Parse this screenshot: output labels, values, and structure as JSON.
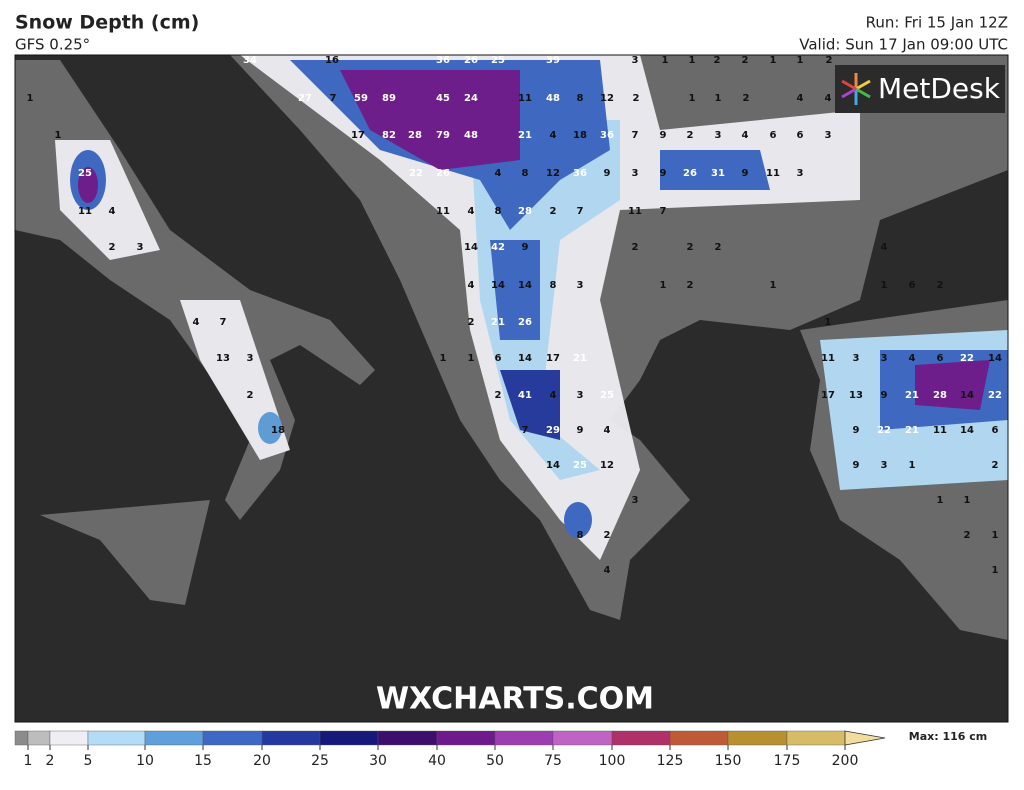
{
  "header": {
    "title": "Snow Depth (cm)",
    "model": "GFS 0.25°",
    "run": "Run: Fri 15 Jan 12Z",
    "valid": "Valid: Sun 17 Jan 09:00 UTC"
  },
  "brand": "MetDesk",
  "watermark": "WXCHARTS.COM",
  "legend": {
    "ticks": [
      1,
      2,
      5,
      10,
      15,
      20,
      25,
      30,
      40,
      50,
      75,
      100,
      125,
      150,
      175,
      200
    ],
    "colors": [
      "#8c8c8c",
      "#bdbdbd",
      "#eeeef4",
      "#b5dcf7",
      "#5f9fdc",
      "#3d68c6",
      "#2439a0",
      "#16197a",
      "#3d0e6e",
      "#6e1a8c",
      "#9c3db0",
      "#c064c4",
      "#b0306a",
      "#c05a36",
      "#b89030",
      "#d6bc66",
      "#f2dc9e"
    ],
    "max_label": "Max: 116 cm"
  },
  "map_labels": [
    [
      34,
      16,
      36,
      26,
      25,
      39,
      3,
      1,
      1,
      2,
      2,
      1,
      1,
      2
    ],
    [
      1,
      27,
      7,
      59,
      89,
      45,
      24,
      11,
      48,
      8,
      12,
      2,
      1,
      1,
      2,
      4,
      4
    ],
    [
      1,
      17,
      82,
      28,
      79,
      48,
      21,
      4,
      18,
      36,
      7,
      9,
      2,
      3,
      4,
      6,
      6,
      3
    ],
    [
      25,
      22,
      26,
      4,
      8,
      12,
      36,
      9,
      3,
      9,
      26,
      31,
      9,
      11,
      3
    ],
    [
      11,
      4,
      11,
      4,
      8,
      28,
      2,
      7,
      11,
      7
    ],
    [
      2,
      3,
      14,
      42,
      9,
      2,
      2,
      2,
      4
    ],
    [
      4,
      14,
      14,
      8,
      3,
      1,
      2,
      1,
      1,
      6,
      2
    ],
    [
      4,
      7,
      2,
      21,
      26,
      1
    ],
    [
      13,
      3,
      1,
      1,
      6,
      14,
      17,
      21,
      11,
      3,
      3,
      4,
      6,
      22,
      14
    ],
    [
      2,
      2,
      41,
      4,
      3,
      25,
      17,
      13,
      9,
      21,
      28,
      14,
      22
    ],
    [
      18,
      7,
      29,
      9,
      4,
      9,
      22,
      21,
      11,
      14,
      6
    ],
    [
      14,
      25,
      12,
      9,
      3,
      1,
      2
    ],
    [
      3,
      1,
      1
    ],
    [
      8,
      2,
      2,
      1
    ],
    [
      4,
      1
    ]
  ]
}
